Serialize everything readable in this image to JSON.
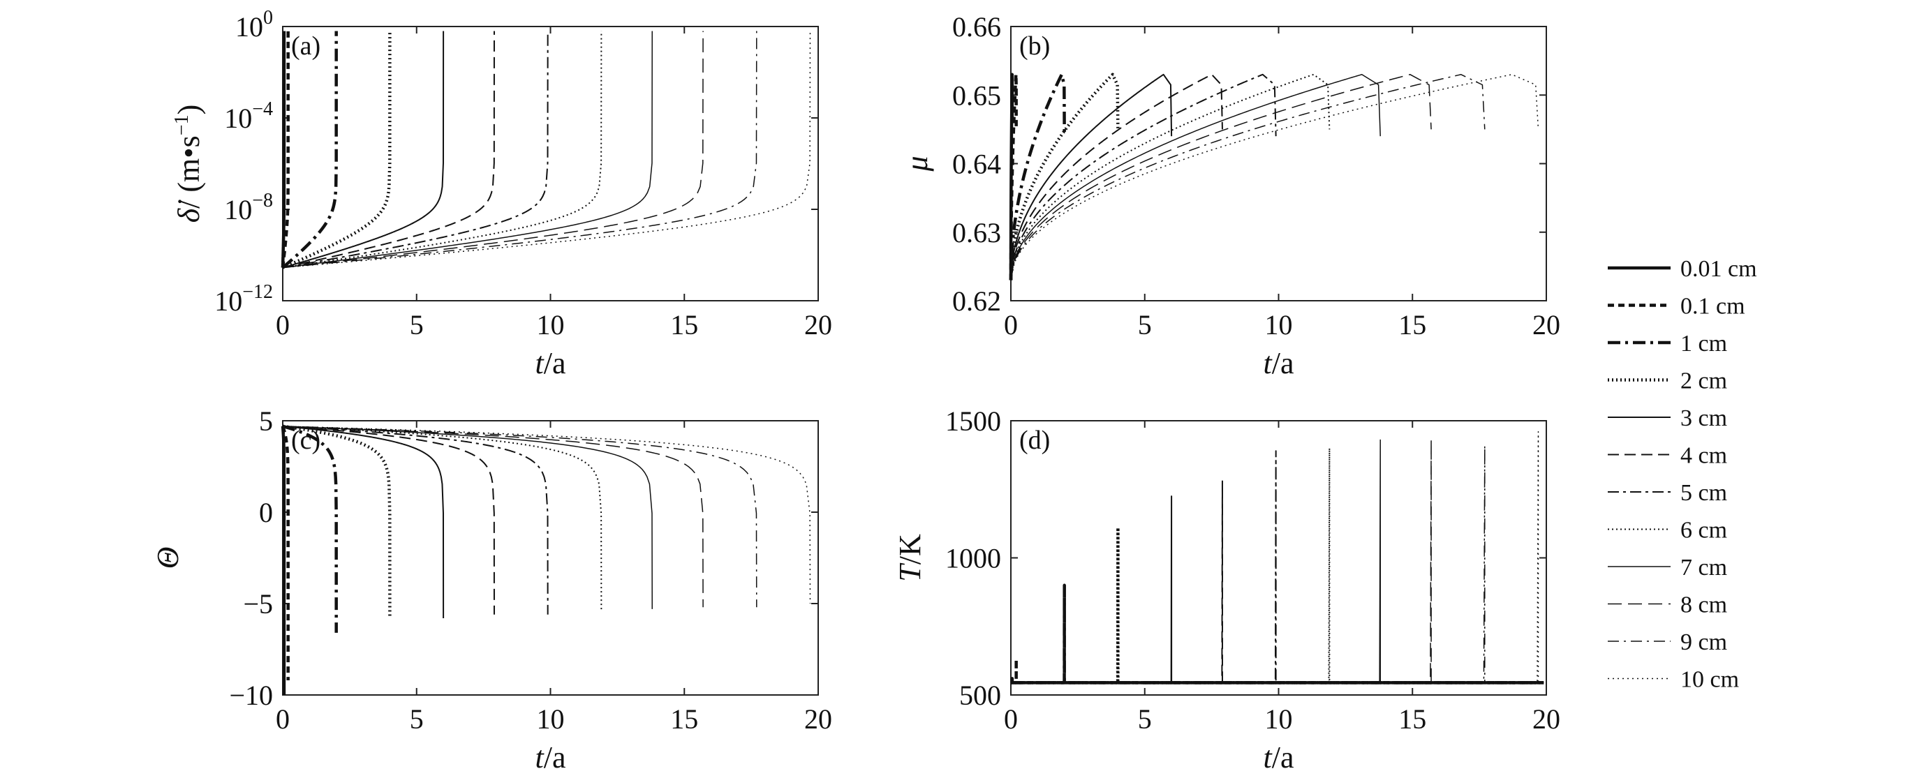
{
  "legend": {
    "entries": [
      "0.01 cm",
      "0.1 cm",
      "1 cm",
      "2 cm",
      "3 cm",
      "4 cm",
      "5 cm",
      "6 cm",
      "7 cm",
      "8 cm",
      "9 cm",
      "10 cm"
    ]
  },
  "styles": [
    {
      "dash": "",
      "width": 4.5
    },
    {
      "dash": "9 6",
      "width": 4.5
    },
    {
      "dash": "18 7 4 7",
      "width": 4.5
    },
    {
      "dash": "2 4",
      "width": 4.5
    },
    {
      "dash": "",
      "width": 2
    },
    {
      "dash": "16 8",
      "width": 2
    },
    {
      "dash": "16 6 4 6",
      "width": 2
    },
    {
      "dash": "2 4",
      "width": 2
    },
    {
      "dash": "",
      "width": 1.5
    },
    {
      "dash": "20 9",
      "width": 1.5
    },
    {
      "dash": "16 7 3 7",
      "width": 1.5
    },
    {
      "dash": "2 5",
      "width": 1.5
    }
  ],
  "chart_data": [
    {
      "type": "line",
      "panel_label": "(a)",
      "xlabel": {
        "var": "t",
        "unit": "/a"
      },
      "ylabel": {
        "var": "δ̇",
        "unit": "/ (m•s",
        "exp": "−1",
        "close": ")"
      },
      "xlim": [
        0,
        20
      ],
      "xticks": [
        0,
        5,
        10,
        15,
        20
      ],
      "y_scale": "log10",
      "ylim_exp": [
        -12,
        0
      ],
      "yticks": [
        {
          "base": "10",
          "exp": "−12",
          "pos": -12
        },
        {
          "base": "10",
          "exp": "−8",
          "pos": -8
        },
        {
          "base": "10",
          "exp": "−4",
          "pos": -4
        },
        {
          "base": "10",
          "exp": "0",
          "pos": 0
        }
      ],
      "failure_times": [
        0.05,
        0.2,
        2.0,
        4.0,
        6.0,
        7.9,
        9.9,
        11.9,
        13.8,
        15.7,
        17.7,
        19.7
      ],
      "series_note": "slip rate starts near 1e-10.5 m/s and rises to ~1e0 m/s at failure time"
    },
    {
      "type": "line",
      "panel_label": "(b)",
      "xlabel": {
        "var": "t",
        "unit": "/a"
      },
      "ylabel": {
        "var": "μ",
        "unit": "",
        "exp": "",
        "close": ""
      },
      "xlim": [
        0,
        20
      ],
      "xticks": [
        0,
        5,
        10,
        15,
        20
      ],
      "ylim": [
        0.62,
        0.66
      ],
      "yticks": [
        "0.62",
        "0.63",
        "0.64",
        "0.65",
        "0.66"
      ],
      "mu_start": 0.623,
      "mu_peak": 0.653,
      "mu_drop": [
        0.646,
        0.645,
        0.644,
        0.645,
        0.644,
        0.645,
        0.644,
        0.645,
        0.644,
        0.645,
        0.645,
        0.645
      ]
    },
    {
      "type": "line",
      "panel_label": "(c)",
      "xlabel": {
        "var": "t",
        "unit": "/a"
      },
      "ylabel": {
        "var": "Θ",
        "unit": "",
        "exp": "",
        "close": ""
      },
      "xlim": [
        0,
        20
      ],
      "xticks": [
        0,
        5,
        10,
        15,
        20
      ],
      "ylim": [
        -10,
        5
      ],
      "yticks": [
        "−10",
        "−5",
        "0",
        "5"
      ],
      "theta_start": 4.5,
      "theta_end": [
        -10,
        -9.2,
        -6.6,
        -5.8,
        -5.8,
        -5.6,
        -5.6,
        -5.4,
        -5.3,
        -5.2,
        -5.2,
        -5.0
      ]
    },
    {
      "type": "line",
      "panel_label": "(d)",
      "xlabel": {
        "var": "T",
        "unit": "/K"
      },
      "xlabel_x": {
        "var": "t",
        "unit": "/a"
      },
      "xlim": [
        0,
        20
      ],
      "xticks": [
        0,
        5,
        10,
        15,
        20
      ],
      "ylim": [
        500,
        1500
      ],
      "yticks": [
        "500",
        "1000",
        "1500"
      ],
      "T_base": 545,
      "T_peak": [
        560,
        630,
        900,
        1110,
        1225,
        1280,
        1390,
        1400,
        1430,
        1430,
        1410,
        1460
      ]
    }
  ]
}
